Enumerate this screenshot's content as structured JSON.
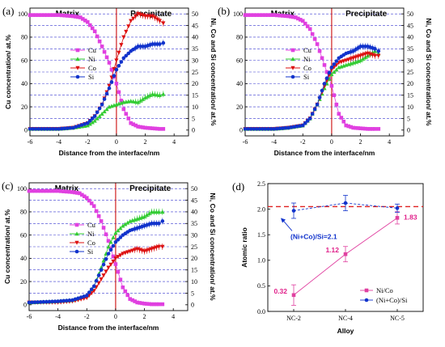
{
  "chart_data": [
    {
      "type": "line",
      "panel_label": "(a)",
      "xlabel": "Distance from the interface/nm",
      "ylabel": "Cu concentration/ at.%",
      "ylabel_right": "Ni, Co and Si concentration/ at.%",
      "xlim": [
        -6,
        5
      ],
      "ylim": [
        -5,
        105
      ],
      "ylim_right": [
        -2.5,
        52.5
      ],
      "xticks": [
        "-6",
        "-4",
        "-2",
        "0",
        "2",
        "4"
      ],
      "yticks": [
        "0",
        "20",
        "40",
        "60",
        "80",
        "100"
      ],
      "yticks_right": [
        "0",
        "5",
        "10",
        "15",
        "20",
        "25",
        "30",
        "35",
        "40",
        "45",
        "50"
      ],
      "region_left": "Matrix",
      "region_right": "Precipitate",
      "legend": [
        "Cu",
        "Ni",
        "Co",
        "Si"
      ],
      "series": [
        {
          "name": "Cu",
          "axis": "left",
          "color": "#e040e0",
          "marker": "square",
          "x": [
            -6,
            -5,
            -4,
            -3,
            -2.5,
            -2,
            -1.5,
            -1,
            -0.5,
            0,
            0.5,
            1,
            1.5,
            2,
            2.5,
            3,
            3.25
          ],
          "y": [
            99,
            99,
            99,
            98,
            97,
            93,
            85,
            72,
            58,
            40,
            18,
            6,
            3,
            2,
            1.5,
            1,
            1
          ]
        },
        {
          "name": "Ni",
          "axis": "right",
          "color": "#33cc33",
          "marker": "triangle",
          "x": [
            -6,
            -4,
            -3,
            -2,
            -1.5,
            -1,
            -0.5,
            0,
            0.5,
            1,
            1.5,
            2,
            2.5,
            3,
            3.25
          ],
          "y": [
            0.5,
            0.5,
            1,
            2,
            4,
            7,
            10,
            11,
            12,
            12.5,
            12,
            14,
            15.5,
            15,
            15.5
          ]
        },
        {
          "name": "Co",
          "axis": "right",
          "color": "#dd1111",
          "marker": "triangle-down",
          "x": [
            -6,
            -4,
            -3,
            -2,
            -1.5,
            -1,
            -0.5,
            0,
            0.5,
            1,
            1.5,
            2,
            2.5,
            3,
            3.25
          ],
          "y": [
            0.5,
            0.5,
            1,
            3,
            6,
            11,
            19,
            30,
            40,
            47,
            50,
            49,
            49,
            47,
            46
          ]
        },
        {
          "name": "Si",
          "axis": "right",
          "color": "#1133cc",
          "marker": "circle",
          "x": [
            -6,
            -4,
            -3,
            -2,
            -1.5,
            -1,
            -0.5,
            0,
            0.5,
            1,
            1.5,
            2,
            2.5,
            3,
            3.25
          ],
          "y": [
            0.5,
            0.5,
            1,
            3,
            6,
            11,
            18,
            26,
            31,
            34,
            36,
            36,
            37,
            37,
            37.5
          ]
        }
      ]
    },
    {
      "type": "line",
      "panel_label": "(b)",
      "xlabel": "Distance from the interface/nm",
      "ylabel_right": "Ni, Co and Si concentration/ at.%",
      "xlim": [
        -6,
        5
      ],
      "ylim": [
        -5,
        105
      ],
      "ylim_right": [
        -2.5,
        52.5
      ],
      "xticks": [
        "-6",
        "-4",
        "-2",
        "0",
        "2",
        "4"
      ],
      "yticks": [
        "0",
        "20",
        "40",
        "60",
        "80",
        "100"
      ],
      "yticks_right": [
        "0",
        "5",
        "10",
        "15",
        "20",
        "25",
        "30",
        "35",
        "40",
        "45",
        "50"
      ],
      "region_left": "Matrix",
      "region_right": "Precipitate",
      "legend": [
        "Cu",
        "Ni",
        "Co",
        "Si"
      ],
      "series": [
        {
          "name": "Cu",
          "axis": "left",
          "color": "#e040e0",
          "marker": "square",
          "x": [
            -6,
            -5,
            -4,
            -3,
            -2.5,
            -2,
            -1.5,
            -1,
            -0.5,
            0,
            0.5,
            1,
            1.5,
            2,
            2.5,
            3,
            3.25
          ],
          "y": [
            99,
            99,
            99,
            98,
            97,
            94,
            87,
            74,
            56,
            38,
            14,
            4,
            2,
            1.5,
            1,
            1,
            1
          ]
        },
        {
          "name": "Ni",
          "axis": "right",
          "color": "#33cc33",
          "marker": "triangle",
          "x": [
            -6,
            -4,
            -3,
            -2,
            -1.5,
            -1,
            -0.5,
            0,
            0.5,
            1,
            1.5,
            2,
            2.5,
            3,
            3.25
          ],
          "y": [
            0.5,
            0.5,
            1,
            2,
            5,
            11,
            18,
            24,
            27,
            28,
            29,
            30,
            32,
            34,
            33
          ]
        },
        {
          "name": "Co",
          "axis": "right",
          "color": "#dd1111",
          "marker": "triangle-down",
          "x": [
            -6,
            -4,
            -3,
            -2,
            -1.5,
            -1,
            -0.5,
            0,
            0.5,
            1,
            1.5,
            2,
            2.5,
            3,
            3.25
          ],
          "y": [
            0.5,
            0.5,
            1,
            2,
            5,
            11,
            19,
            26,
            29,
            30,
            31,
            32,
            33,
            32,
            32
          ]
        },
        {
          "name": "Si",
          "axis": "right",
          "color": "#1133cc",
          "marker": "circle",
          "x": [
            -6,
            -4,
            -3,
            -2,
            -1.5,
            -1,
            -0.5,
            0,
            0.5,
            1,
            1.5,
            2,
            2.5,
            3,
            3.25
          ],
          "y": [
            0.5,
            0.5,
            1,
            2,
            5,
            11,
            20,
            27,
            31,
            33,
            34,
            36,
            36,
            35,
            34
          ]
        }
      ]
    },
    {
      "type": "line",
      "panel_label": "(c)",
      "xlabel": "Distance from the interface/nm",
      "ylabel": "Cu concentration/ at.%",
      "ylabel_right": "Ni, Co and Si concentration/ at.%",
      "xlim": [
        -6,
        5
      ],
      "ylim": [
        -5,
        105
      ],
      "ylim_right": [
        -2.5,
        52.5
      ],
      "xticks": [
        "-6",
        "-4",
        "-2",
        "0",
        "2",
        "4"
      ],
      "yticks": [
        "0",
        "20",
        "40",
        "60",
        "80",
        "100"
      ],
      "yticks_right": [
        "0",
        "5",
        "10",
        "15",
        "20",
        "25",
        "30",
        "35",
        "40",
        "45",
        "50"
      ],
      "region_left": "Matrix",
      "region_right": "Precipitate",
      "legend": [
        "Cu",
        "Ni",
        "Co",
        "Si"
      ],
      "series": [
        {
          "name": "Cu",
          "axis": "left",
          "color": "#e040e0",
          "marker": "square",
          "x": [
            -6,
            -5,
            -4,
            -3,
            -2.5,
            -2,
            -1.5,
            -1,
            -0.5,
            0,
            0.5,
            1,
            1.5,
            2,
            2.5,
            3,
            3.25
          ],
          "y": [
            98,
            98,
            98,
            97,
            96,
            92,
            85,
            72,
            55,
            35,
            15,
            5,
            2,
            1,
            0.5,
            0.5,
            0.5
          ]
        },
        {
          "name": "Ni",
          "axis": "right",
          "color": "#33cc33",
          "marker": "triangle",
          "x": [
            -6,
            -4,
            -3,
            -2,
            -1.5,
            -1,
            -0.5,
            0,
            0.5,
            1,
            1.5,
            2,
            2.5,
            3,
            3.25
          ],
          "y": [
            1,
            1.5,
            2,
            4,
            8,
            16,
            25,
            31,
            34,
            36,
            37,
            38,
            40,
            40,
            40
          ]
        },
        {
          "name": "Co",
          "axis": "right",
          "color": "#dd1111",
          "marker": "triangle-down",
          "x": [
            -6,
            -4,
            -3,
            -2,
            -1.5,
            -1,
            -0.5,
            0,
            0.5,
            1,
            1.5,
            2,
            2.5,
            3,
            3.25
          ],
          "y": [
            1,
            1,
            1.5,
            3,
            6,
            11,
            16,
            20,
            22,
            23,
            24,
            23,
            24,
            25,
            25
          ]
        },
        {
          "name": "Si",
          "axis": "right",
          "color": "#1133cc",
          "marker": "circle",
          "x": [
            -6,
            -4,
            -3,
            -2,
            -1.5,
            -1,
            -0.5,
            0,
            0.5,
            1,
            1.5,
            2,
            2.5,
            3,
            3.25
          ],
          "y": [
            1,
            1.5,
            2,
            4,
            8,
            15,
            22,
            27,
            30,
            32,
            33,
            34,
            35,
            35,
            36
          ]
        }
      ]
    },
    {
      "type": "line",
      "panel_label": "(d)",
      "xlabel": "Alloy",
      "ylabel": "Atomic ratio",
      "categories": [
        "NC-2",
        "NC-4",
        "NC-5"
      ],
      "ylim": [
        0,
        2.5
      ],
      "yticks": [
        "0.0",
        "0.5",
        "1.0",
        "1.5",
        "2.0",
        "2.5"
      ],
      "reference_line": {
        "y": 2.05,
        "label": "(Ni+Co)/Si=2.1"
      },
      "series": [
        {
          "name": "Ni/Co",
          "color": "#e040a0",
          "marker": "square",
          "values": [
            0.32,
            1.12,
            1.83
          ],
          "errors": [
            0.2,
            0.15,
            0.12
          ],
          "data_labels": [
            "0.32",
            "1.12",
            "1.83"
          ]
        },
        {
          "name": "(Ni+Co)/Si",
          "color": "#1133cc",
          "marker": "circle",
          "values": [
            1.97,
            2.12,
            2.02
          ],
          "errors": [
            0.15,
            0.15,
            0.08
          ]
        }
      ]
    }
  ]
}
